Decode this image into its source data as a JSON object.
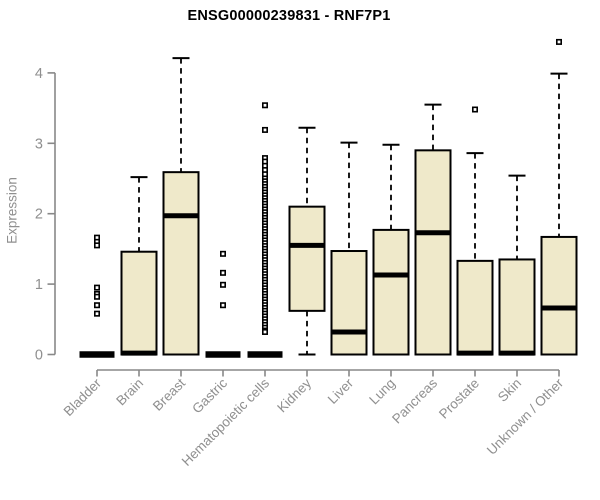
{
  "title": "ENSG00000239831 - RNF7P1",
  "colors": {
    "background": "#FFFFFF",
    "box_fill": "#EFE9CA",
    "box_border": "#000000",
    "median": "#000000",
    "whisker": "#000000",
    "outlier": "#000000",
    "axis_line": "#888888",
    "axis_text": "#8F8F8F",
    "title_text": "#000000"
  },
  "chart_data": {
    "type": "boxplot",
    "title": "ENSG00000239831 - RNF7P1",
    "xlabel": "",
    "ylabel": "Expression",
    "ylim": [
      0,
      4
    ],
    "yticks": [
      0,
      1,
      2,
      3,
      4
    ],
    "grid": false,
    "legend": false,
    "categories": [
      "Bladder",
      "Brain",
      "Breast",
      "Gastric",
      "Hematopoietic cells",
      "Kidney",
      "Liver",
      "Lung",
      "Pancreas",
      "Prostate",
      "Skin",
      "Unknown / Other"
    ],
    "series": [
      {
        "name": "Bladder",
        "whisker_low": 0,
        "q1": 0,
        "median": 0,
        "q3": 0,
        "whisker_high": 0,
        "outliers": [
          1.66,
          1.6,
          1.55,
          0.95,
          0.86,
          0.82,
          0.7,
          0.58
        ]
      },
      {
        "name": "Brain",
        "whisker_low": 0,
        "q1": 0,
        "median": 0.02,
        "q3": 1.46,
        "whisker_high": 2.52,
        "outliers": []
      },
      {
        "name": "Breast",
        "whisker_low": 0,
        "q1": 0,
        "median": 1.97,
        "q3": 2.59,
        "whisker_high": 4.21,
        "outliers": []
      },
      {
        "name": "Gastric",
        "whisker_low": 0,
        "q1": 0,
        "median": 0,
        "q3": 0,
        "whisker_high": 0,
        "outliers": [
          1.43,
          1.16,
          0.99,
          0.7
        ]
      },
      {
        "name": "Hematopoietic cells",
        "whisker_low": 0,
        "q1": 0,
        "median": 0,
        "q3": 0,
        "whisker_high": 0,
        "outliers": [
          3.54,
          3.19,
          2.79,
          2.74,
          2.68,
          2.62,
          2.56,
          2.5,
          2.46,
          2.42,
          2.38,
          2.34,
          2.3,
          2.26,
          2.22,
          2.18,
          2.14,
          2.1,
          2.06,
          2.02,
          1.98,
          1.94,
          1.9,
          1.86,
          1.82,
          1.78,
          1.74,
          1.7,
          1.66,
          1.62,
          1.58,
          1.54,
          1.5,
          1.46,
          1.42,
          1.38,
          1.34,
          1.3,
          1.26,
          1.22,
          1.18,
          1.14,
          1.1,
          1.06,
          1.02,
          0.98,
          0.94,
          0.9,
          0.86,
          0.82,
          0.78,
          0.74,
          0.7,
          0.66,
          0.62,
          0.58,
          0.54,
          0.5,
          0.46,
          0.42,
          0.38,
          0.34,
          0.32
        ]
      },
      {
        "name": "Kidney",
        "whisker_low": 0,
        "q1": 0.62,
        "median": 1.55,
        "q3": 2.1,
        "whisker_high": 3.22,
        "outliers": []
      },
      {
        "name": "Liver",
        "whisker_low": 0,
        "q1": 0,
        "median": 0.32,
        "q3": 1.47,
        "whisker_high": 3.01,
        "outliers": []
      },
      {
        "name": "Lung",
        "whisker_low": 0,
        "q1": 0,
        "median": 1.13,
        "q3": 1.77,
        "whisker_high": 2.98,
        "outliers": []
      },
      {
        "name": "Pancreas",
        "whisker_low": 0,
        "q1": 0,
        "median": 1.73,
        "q3": 2.9,
        "whisker_high": 3.55,
        "outliers": []
      },
      {
        "name": "Prostate",
        "whisker_low": 0,
        "q1": 0,
        "median": 0.02,
        "q3": 1.33,
        "whisker_high": 2.86,
        "outliers": [
          3.48
        ]
      },
      {
        "name": "Skin",
        "whisker_low": 0,
        "q1": 0,
        "median": 0.02,
        "q3": 1.35,
        "whisker_high": 2.54,
        "outliers": []
      },
      {
        "name": "Unknown / Other",
        "whisker_low": 0,
        "q1": 0,
        "median": 0.66,
        "q3": 1.67,
        "whisker_high": 3.99,
        "outliers": [
          4.44
        ]
      }
    ]
  }
}
